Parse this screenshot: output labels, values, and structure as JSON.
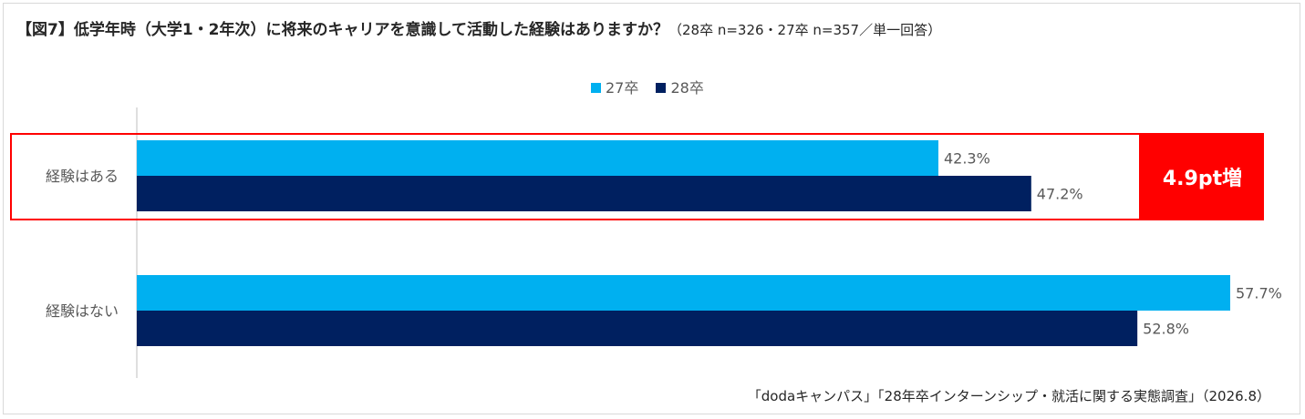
{
  "title": {
    "main": "【図7】低学年時（大学1・2年次）に将来のキャリアを意識して活動した経験はありますか？",
    "sub": "（28卒 n=326・27卒 n=357／単一回答）"
  },
  "chart_data": {
    "type": "bar",
    "orientation": "horizontal",
    "categories": [
      "経験はある",
      "経験はない"
    ],
    "series": [
      {
        "name": "27卒",
        "values": [
          42.3,
          57.7
        ],
        "labels": [
          "42.3%",
          "57.7%"
        ],
        "color": "#00b0f0"
      },
      {
        "name": "28卒",
        "values": [
          47.2,
          52.8
        ],
        "labels": [
          "47.2%",
          "52.8%"
        ],
        "color": "#002060"
      }
    ],
    "xlim": [
      0,
      60
    ],
    "grid": false,
    "legend_position": "top-center"
  },
  "callout": {
    "text": "4.9pt増",
    "color": "#ff0000"
  },
  "source": "「dodaキャンパス」「28年卒インターンシップ・就活に関する実態調査」（2026.8）"
}
